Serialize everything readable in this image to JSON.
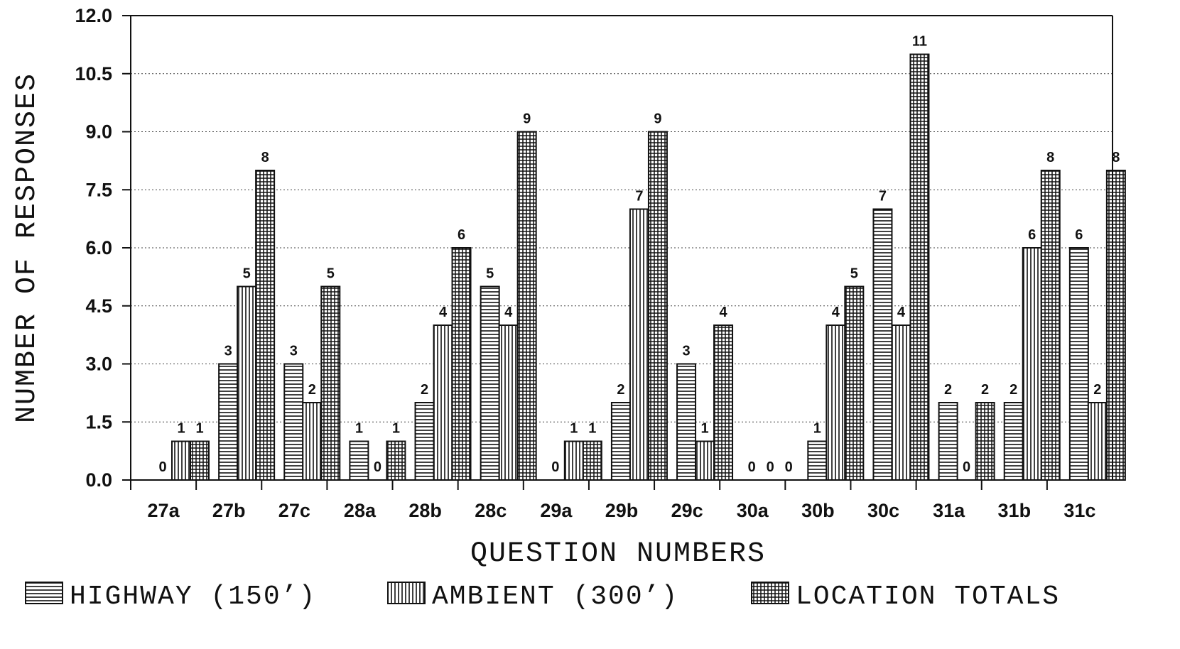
{
  "chart_data": {
    "type": "bar",
    "title": "",
    "xlabel": "QUESTION NUMBERS",
    "ylabel": "NUMBER OF RESPONSES",
    "ylim": [
      0,
      12
    ],
    "yticks": [
      "0.0",
      "1.5",
      "3.0",
      "4.5",
      "6.0",
      "7.5",
      "9.0",
      "10.5",
      "12.0"
    ],
    "grid": true,
    "legend": "bottom",
    "categories": [
      "27a",
      "27b",
      "27c",
      "28a",
      "28b",
      "28c",
      "29a",
      "29b",
      "29c",
      "30a",
      "30b",
      "30c",
      "31a",
      "31b",
      "31c"
    ],
    "series": [
      {
        "name": "HIGHWAY (150’)",
        "pattern": "horizontal-lines",
        "values": [
          0,
          3,
          3,
          1,
          2,
          5,
          0,
          2,
          3,
          0,
          1,
          7,
          2,
          2,
          6
        ]
      },
      {
        "name": "AMBIENT (300’)",
        "pattern": "vertical-lines",
        "values": [
          1,
          5,
          2,
          0,
          4,
          4,
          1,
          7,
          1,
          0,
          4,
          4,
          0,
          6,
          2
        ]
      },
      {
        "name": "LOCATION TOTALS",
        "pattern": "grid",
        "values": [
          1,
          8,
          5,
          1,
          6,
          9,
          1,
          9,
          4,
          0,
          5,
          11,
          2,
          8,
          8
        ]
      }
    ]
  }
}
